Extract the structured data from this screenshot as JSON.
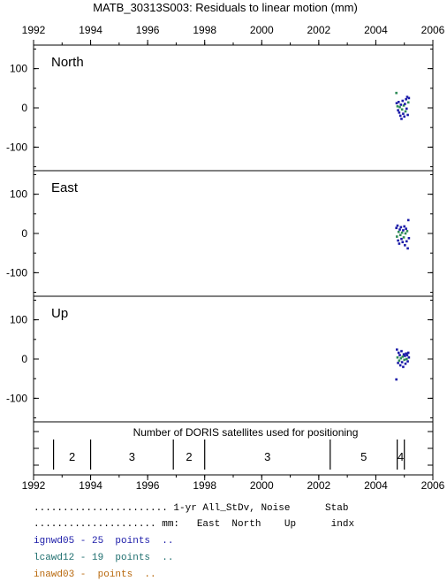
{
  "chart_data": {
    "type": "scatter",
    "title": "MATB_30313S003: Residuals to linear motion (mm)",
    "x_ticks": [
      "1992",
      "1994",
      "1996",
      "1998",
      "2000",
      "2002",
      "2004",
      "2006"
    ],
    "xlim": [
      1992,
      2006
    ],
    "panels": [
      {
        "name": "North",
        "y_ticks": [
          "100",
          "0",
          "-100"
        ],
        "ylim": [
          -160,
          160
        ],
        "points": [
          {
            "x": 2004.72,
            "y": 38,
            "series": "lcawd12"
          },
          {
            "x": 2004.73,
            "y": 12,
            "series": "ignwd05"
          },
          {
            "x": 2004.76,
            "y": 4,
            "series": "lcawd12"
          },
          {
            "x": 2004.78,
            "y": -6,
            "series": "ignwd05"
          },
          {
            "x": 2004.8,
            "y": 15,
            "series": "ignwd05"
          },
          {
            "x": 2004.82,
            "y": -12,
            "series": "ignwd05"
          },
          {
            "x": 2004.84,
            "y": 2,
            "series": "lcawd12"
          },
          {
            "x": 2004.86,
            "y": -20,
            "series": "ignwd05"
          },
          {
            "x": 2004.88,
            "y": 8,
            "series": "ignwd05"
          },
          {
            "x": 2004.9,
            "y": -28,
            "series": "ignwd05"
          },
          {
            "x": 2004.92,
            "y": -4,
            "series": "lcawd12"
          },
          {
            "x": 2004.94,
            "y": 18,
            "series": "ignwd05"
          },
          {
            "x": 2004.96,
            "y": -15,
            "series": "ignwd05"
          },
          {
            "x": 2004.98,
            "y": 6,
            "series": "lcawd12"
          },
          {
            "x": 2005.0,
            "y": -22,
            "series": "ignwd05"
          },
          {
            "x": 2005.02,
            "y": 10,
            "series": "ignwd05"
          },
          {
            "x": 2005.04,
            "y": -9,
            "series": "lcawd12"
          },
          {
            "x": 2005.06,
            "y": 22,
            "series": "ignwd05"
          },
          {
            "x": 2005.08,
            "y": -2,
            "series": "ignwd05"
          },
          {
            "x": 2005.1,
            "y": 28,
            "series": "ignwd05"
          },
          {
            "x": 2005.12,
            "y": -18,
            "series": "ignwd05"
          },
          {
            "x": 2005.14,
            "y": 14,
            "series": "lcawd12"
          },
          {
            "x": 2005.16,
            "y": 25,
            "series": "ignwd05"
          }
        ]
      },
      {
        "name": "East",
        "y_ticks": [
          "100",
          "0",
          "-100"
        ],
        "ylim": [
          -160,
          160
        ],
        "points": [
          {
            "x": 2004.72,
            "y": 14,
            "series": "ignwd05"
          },
          {
            "x": 2004.74,
            "y": -8,
            "series": "lcawd12"
          },
          {
            "x": 2004.76,
            "y": 20,
            "series": "ignwd05"
          },
          {
            "x": 2004.78,
            "y": -18,
            "series": "ignwd05"
          },
          {
            "x": 2004.8,
            "y": 4,
            "series": "lcawd12"
          },
          {
            "x": 2004.82,
            "y": -26,
            "series": "ignwd05"
          },
          {
            "x": 2004.84,
            "y": 10,
            "series": "ignwd05"
          },
          {
            "x": 2004.86,
            "y": -4,
            "series": "lcawd12"
          },
          {
            "x": 2004.88,
            "y": 16,
            "series": "ignwd05"
          },
          {
            "x": 2004.9,
            "y": -14,
            "series": "ignwd05"
          },
          {
            "x": 2004.92,
            "y": 2,
            "series": "lcawd12"
          },
          {
            "x": 2004.94,
            "y": -22,
            "series": "ignwd05"
          },
          {
            "x": 2004.96,
            "y": 8,
            "series": "ignwd05"
          },
          {
            "x": 2004.98,
            "y": -10,
            "series": "lcawd12"
          },
          {
            "x": 2005.0,
            "y": 18,
            "series": "ignwd05"
          },
          {
            "x": 2005.02,
            "y": -30,
            "series": "ignwd05"
          },
          {
            "x": 2005.04,
            "y": 0,
            "series": "lcawd12"
          },
          {
            "x": 2005.06,
            "y": 12,
            "series": "ignwd05"
          },
          {
            "x": 2005.08,
            "y": -20,
            "series": "ignwd05"
          },
          {
            "x": 2005.1,
            "y": 6,
            "series": "lcawd12"
          },
          {
            "x": 2005.12,
            "y": -38,
            "series": "ignwd05"
          },
          {
            "x": 2005.14,
            "y": 34,
            "series": "ignwd05"
          },
          {
            "x": 2005.16,
            "y": -12,
            "series": "ignwd05"
          }
        ]
      },
      {
        "name": "Up",
        "y_ticks": [
          "100",
          "0",
          "-100"
        ],
        "ylim": [
          -160,
          160
        ],
        "points": [
          {
            "x": 2004.72,
            "y": -52,
            "series": "ignwd05"
          },
          {
            "x": 2004.74,
            "y": 24,
            "series": "ignwd05"
          },
          {
            "x": 2004.76,
            "y": 4,
            "series": "lcawd12"
          },
          {
            "x": 2004.78,
            "y": -10,
            "series": "ignwd05"
          },
          {
            "x": 2004.8,
            "y": 16,
            "series": "ignwd05"
          },
          {
            "x": 2004.82,
            "y": -4,
            "series": "lcawd12"
          },
          {
            "x": 2004.84,
            "y": 10,
            "series": "ignwd05"
          },
          {
            "x": 2004.86,
            "y": -16,
            "series": "ignwd05"
          },
          {
            "x": 2004.88,
            "y": 2,
            "series": "lcawd12"
          },
          {
            "x": 2004.9,
            "y": 20,
            "series": "ignwd05"
          },
          {
            "x": 2004.92,
            "y": -8,
            "series": "ignwd05"
          },
          {
            "x": 2004.94,
            "y": 6,
            "series": "lcawd12"
          },
          {
            "x": 2004.96,
            "y": -20,
            "series": "ignwd05"
          },
          {
            "x": 2004.98,
            "y": 12,
            "series": "ignwd05"
          },
          {
            "x": 2005.0,
            "y": -2,
            "series": "lcawd12"
          },
          {
            "x": 2005.02,
            "y": 8,
            "series": "ignwd05"
          },
          {
            "x": 2005.04,
            "y": -12,
            "series": "ignwd05"
          },
          {
            "x": 2005.06,
            "y": 14,
            "series": "ignwd05"
          },
          {
            "x": 2005.08,
            "y": 0,
            "series": "lcawd12"
          },
          {
            "x": 2005.1,
            "y": 10,
            "series": "ignwd05"
          },
          {
            "x": 2005.12,
            "y": -6,
            "series": "ignwd05"
          },
          {
            "x": 2005.14,
            "y": 16,
            "series": "ignwd05"
          },
          {
            "x": 2005.16,
            "y": 4,
            "series": "ignwd05"
          }
        ]
      }
    ],
    "doris": {
      "label": "Number of DORIS satellites used for positioning",
      "boundaries": [
        1992.7,
        1994.0,
        1996.9,
        1998.0,
        2002.4,
        2004.75,
        2005.0
      ],
      "segments": [
        {
          "label": "2",
          "from": 1992.7,
          "to": 1994.0
        },
        {
          "label": "3",
          "from": 1994.0,
          "to": 1996.9
        },
        {
          "label": "2",
          "from": 1996.9,
          "to": 1998.0
        },
        {
          "label": "3",
          "from": 1998.0,
          "to": 2002.4
        },
        {
          "label": "5",
          "from": 2002.4,
          "to": 2004.75
        },
        {
          "label": "4",
          "from": 2004.75,
          "to": 2005.0
        }
      ]
    },
    "series": [
      {
        "name": "ignwd05",
        "color": "#1a1aa8"
      },
      {
        "name": "lcawd12",
        "color": "#2e8b57"
      },
      {
        "name": "inawd03",
        "color": "#b8680c"
      }
    ]
  },
  "legend": {
    "header1": "....................... 1-yr All_StDv, Noise      Stab",
    "header2": "..................... mm:   East  North    Up      indx",
    "rows": [
      {
        "text": "ignwd05 - 25  points  ..",
        "color": "#1a1aa8"
      },
      {
        "text": "lcawd12 - 19  points  ..",
        "color": "#1f6f6f"
      },
      {
        "text": "inawd03 -  points  ..",
        "color": "#b8680c"
      }
    ]
  }
}
